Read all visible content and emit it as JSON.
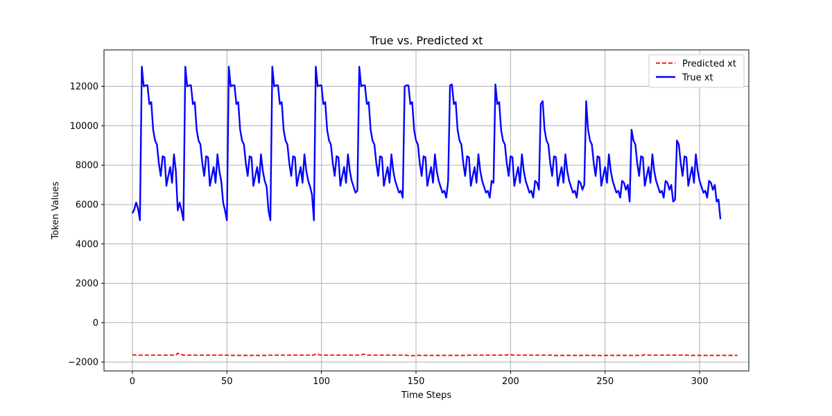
{
  "chart_data": {
    "type": "line",
    "title": "True vs. Predicted xt",
    "xlabel": "Time Steps",
    "ylabel": "Token Values",
    "xlim": [
      -15,
      326
    ],
    "ylim": [
      -2450,
      13850
    ],
    "xticks": [
      0,
      50,
      100,
      150,
      200,
      250,
      300
    ],
    "yticks": [
      -2000,
      0,
      2000,
      4000,
      6000,
      8000,
      10000,
      12000
    ],
    "grid": true,
    "legend_position": "top-right",
    "series": [
      {
        "name": "Predicted xt",
        "color": "#ff0000",
        "style": "dashed",
        "x_start": 0,
        "values": [
          -1620,
          -1640,
          -1650,
          -1650,
          -1650,
          -1650,
          -1650,
          -1650,
          -1650,
          -1650,
          -1650,
          -1650,
          -1650,
          -1650,
          -1650,
          -1650,
          -1650,
          -1650,
          -1650,
          -1650,
          -1650,
          -1650,
          -1650,
          -1650,
          -1550,
          -1600,
          -1620,
          -1650,
          -1650,
          -1650,
          -1650,
          -1650,
          -1650,
          -1650,
          -1650,
          -1650,
          -1650,
          -1650,
          -1650,
          -1650,
          -1650,
          -1650,
          -1650,
          -1650,
          -1650,
          -1650,
          -1650,
          -1650,
          -1650,
          -1650,
          -1650,
          -1650,
          -1650,
          -1660,
          -1660,
          -1660,
          -1660,
          -1660,
          -1660,
          -1660,
          -1660,
          -1660,
          -1660,
          -1660,
          -1660,
          -1660,
          -1660,
          -1660,
          -1660,
          -1660,
          -1660,
          -1660,
          -1650,
          -1650,
          -1650,
          -1650,
          -1650,
          -1650,
          -1650,
          -1650,
          -1650,
          -1650,
          -1650,
          -1650,
          -1650,
          -1650,
          -1650,
          -1650,
          -1650,
          -1650,
          -1650,
          -1650,
          -1650,
          -1650,
          -1650,
          -1650,
          -1650,
          -1580,
          -1610,
          -1630,
          -1650,
          -1650,
          -1650,
          -1650,
          -1650,
          -1650,
          -1650,
          -1650,
          -1650,
          -1650,
          -1650,
          -1650,
          -1650,
          -1650,
          -1650,
          -1650,
          -1650,
          -1650,
          -1650,
          -1650,
          -1650,
          -1650,
          -1600,
          -1620,
          -1640,
          -1650,
          -1650,
          -1650,
          -1650,
          -1650,
          -1650,
          -1650,
          -1650,
          -1650,
          -1650,
          -1650,
          -1650,
          -1650,
          -1650,
          -1650,
          -1650,
          -1650,
          -1650,
          -1650,
          -1650,
          -1650,
          -1670,
          -1670,
          -1670,
          -1670,
          -1660,
          -1660,
          -1660,
          -1660,
          -1660,
          -1660,
          -1660,
          -1660,
          -1660,
          -1660,
          -1660,
          -1660,
          -1660,
          -1660,
          -1660,
          -1660,
          -1660,
          -1660,
          -1660,
          -1660,
          -1660,
          -1660,
          -1660,
          -1660,
          -1660,
          -1660,
          -1660,
          -1660,
          -1650,
          -1650,
          -1650,
          -1650,
          -1650,
          -1650,
          -1650,
          -1650,
          -1650,
          -1650,
          -1650,
          -1650,
          -1650,
          -1650,
          -1650,
          -1650,
          -1650,
          -1650,
          -1650,
          -1650,
          -1650,
          -1600,
          -1620,
          -1640,
          -1650,
          -1650,
          -1650,
          -1650,
          -1650,
          -1650,
          -1650,
          -1650,
          -1650,
          -1650,
          -1650,
          -1650,
          -1650,
          -1650,
          -1650,
          -1650,
          -1650,
          -1650,
          -1650,
          -1650,
          -1650,
          -1670,
          -1660,
          -1660,
          -1660,
          -1660,
          -1660,
          -1660,
          -1660,
          -1660,
          -1660,
          -1660,
          -1660,
          -1660,
          -1660,
          -1660,
          -1660,
          -1660,
          -1660,
          -1660,
          -1660,
          -1660,
          -1660,
          -1660,
          -1660,
          -1660,
          -1670,
          -1660,
          -1660,
          -1660,
          -1660,
          -1660,
          -1660,
          -1660,
          -1660,
          -1660,
          -1660,
          -1660,
          -1660,
          -1660,
          -1660,
          -1660,
          -1660,
          -1660,
          -1660,
          -1660,
          -1660,
          -1660,
          -1660,
          -1620,
          -1640,
          -1650,
          -1650,
          -1650,
          -1650,
          -1650,
          -1650,
          -1650,
          -1650,
          -1650,
          -1650,
          -1650,
          -1650,
          -1650,
          -1650,
          -1650,
          -1650,
          -1650,
          -1650,
          -1650,
          -1650,
          -1650,
          -1650,
          -1670,
          -1660,
          -1660,
          -1660,
          -1660,
          -1660,
          -1660,
          -1660,
          -1660,
          -1660,
          -1660,
          -1660,
          -1660,
          -1660,
          -1660,
          -1660,
          -1660,
          -1660,
          -1660,
          -1660,
          -1660,
          -1660,
          -1660,
          -1660,
          -1660,
          -1660
        ]
      },
      {
        "name": "True xt",
        "color": "#0000ff",
        "style": "solid",
        "x_start": 0,
        "values": [
          5550,
          5750,
          6100,
          5800,
          5200,
          13000,
          12000,
          12050,
          12050,
          11100,
          11200,
          9800,
          9250,
          9050,
          8100,
          7450,
          8450,
          8400,
          6950,
          7450,
          7900,
          7100,
          8550,
          7700,
          5700,
          6100,
          5700,
          5200,
          13000,
          12000,
          12050,
          12050,
          11100,
          11200,
          9800,
          9250,
          9050,
          8100,
          7450,
          8450,
          8400,
          6950,
          7450,
          7900,
          7100,
          8550,
          7700,
          7200,
          6100,
          5700,
          5200,
          13000,
          12000,
          12050,
          12050,
          11100,
          11200,
          9800,
          9250,
          9050,
          8100,
          7450,
          8450,
          8400,
          6950,
          7450,
          7900,
          7100,
          8550,
          7700,
          7200,
          6900,
          5700,
          5200,
          13000,
          12000,
          12050,
          12050,
          11100,
          11200,
          9800,
          9250,
          9050,
          8100,
          7450,
          8450,
          8400,
          6950,
          7450,
          7900,
          7100,
          8550,
          7700,
          7200,
          6900,
          6500,
          5200,
          13000,
          12000,
          12050,
          12050,
          11100,
          11200,
          9800,
          9250,
          9050,
          8100,
          7450,
          8450,
          8400,
          6950,
          7450,
          7900,
          7100,
          8550,
          7700,
          7200,
          6900,
          6600,
          6700,
          13000,
          12000,
          12050,
          12050,
          11100,
          11200,
          9800,
          9250,
          9050,
          8100,
          7450,
          8450,
          8400,
          6950,
          7450,
          7900,
          7100,
          8550,
          7700,
          7200,
          6900,
          6600,
          6700,
          6350,
          12000,
          12050,
          12050,
          11100,
          11200,
          9800,
          9250,
          9050,
          8100,
          7450,
          8450,
          8400,
          6950,
          7450,
          7900,
          7100,
          8550,
          7700,
          7200,
          6900,
          6600,
          6700,
          6350,
          7200,
          12050,
          12100,
          11100,
          11200,
          9800,
          9250,
          9050,
          8100,
          7450,
          8450,
          8400,
          6950,
          7450,
          7900,
          7100,
          8550,
          7700,
          7200,
          6900,
          6600,
          6700,
          6350,
          7200,
          7100,
          12100,
          11100,
          11200,
          9800,
          9250,
          9050,
          8100,
          7450,
          8450,
          8400,
          6950,
          7450,
          7900,
          7100,
          8550,
          7700,
          7200,
          6900,
          6600,
          6700,
          6350,
          7200,
          7100,
          6750,
          11100,
          11250,
          9800,
          9250,
          9050,
          8100,
          7450,
          8450,
          8400,
          6950,
          7450,
          7900,
          7100,
          8550,
          7700,
          7200,
          6900,
          6600,
          6700,
          6350,
          7200,
          7100,
          6750,
          7000,
          11250,
          9800,
          9250,
          9050,
          8100,
          7450,
          8450,
          8400,
          6950,
          7450,
          7900,
          7100,
          8550,
          7700,
          7200,
          6900,
          6600,
          6700,
          6350,
          7200,
          7100,
          6750,
          7000,
          6150,
          9800,
          9250,
          9050,
          8100,
          7450,
          8450,
          8400,
          6950,
          7450,
          7900,
          7100,
          8550,
          7700,
          7200,
          6900,
          6600,
          6700,
          6350,
          7200,
          7100,
          6750,
          7000,
          6150,
          6250,
          9250,
          9050,
          8100,
          7450,
          8450,
          8400,
          6950,
          7450,
          7900,
          7100,
          8550,
          7700,
          7200,
          6900,
          6600,
          6700,
          6350,
          7200,
          7100,
          6750,
          7000,
          6150,
          6250,
          5250
        ]
      }
    ]
  }
}
